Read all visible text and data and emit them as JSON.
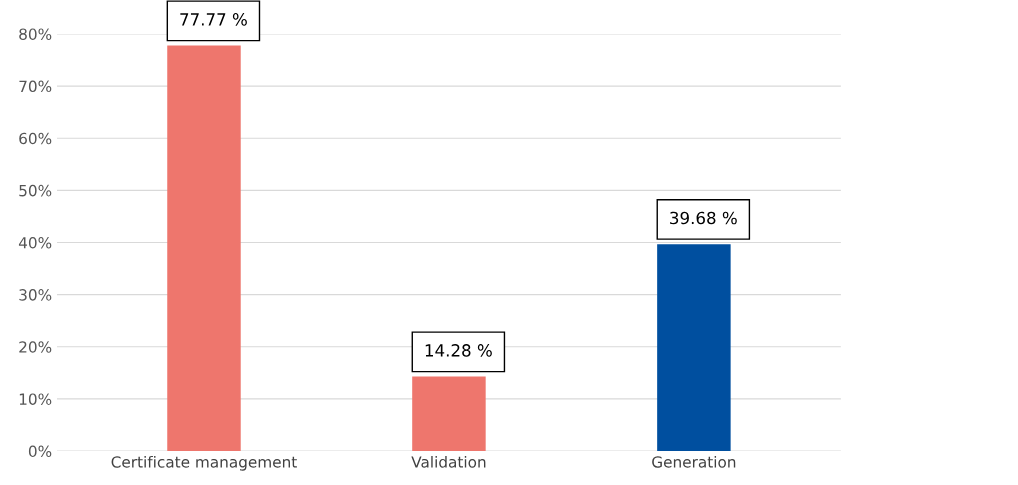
{
  "chart_data": {
    "type": "bar",
    "categories": [
      "Certificate management",
      "Validation",
      "Generation"
    ],
    "values": [
      77.77,
      14.28,
      39.68
    ],
    "colors": [
      "#ee766d",
      "#ee766d",
      "#004f9f"
    ],
    "value_labels": [
      "77.77 %",
      "14.28 %",
      "39.68 %"
    ],
    "ylim": [
      0,
      80
    ],
    "yticks": [
      {
        "value": 0,
        "label": "0%"
      },
      {
        "value": 10,
        "label": "10%"
      },
      {
        "value": 20,
        "label": "20%"
      },
      {
        "value": 30,
        "label": "30%"
      },
      {
        "value": 40,
        "label": "40%"
      },
      {
        "value": 50,
        "label": "50%"
      },
      {
        "value": 60,
        "label": "60%"
      },
      {
        "value": 70,
        "label": "70%"
      },
      {
        "value": 80,
        "label": "80%"
      }
    ],
    "grid": "y"
  }
}
